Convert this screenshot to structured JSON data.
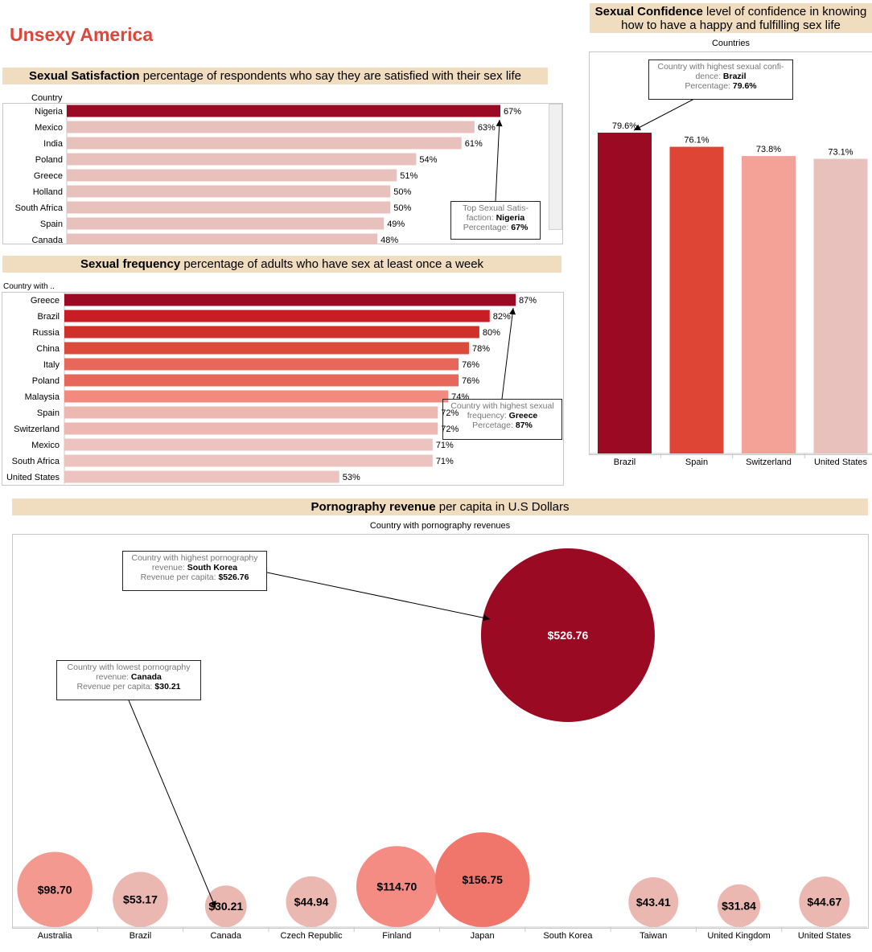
{
  "dashboard_title": "Unsexy America",
  "satisfaction": {
    "title_bold": "Sexual Satisfaction",
    "title_rest": " percentage of respondents who say they are satisfied with their sex life",
    "column_header": "Country",
    "annotation": {
      "line1": "Top Sexual Satis-",
      "line2_label": "faction:",
      "line2_value": "Nigeria",
      "line3_label": "Percentage:",
      "line3_value": "67%"
    },
    "colors": {
      "top": "#9b0a23",
      "other": "#e8c1bc"
    }
  },
  "frequency": {
    "title_bold": "Sexual frequency",
    "title_rest": " percentage of adults who have sex at least once a week",
    "column_header": "Country with ..",
    "annotation": {
      "line1": "Country with highest sexual",
      "line2_label": "frequency:",
      "line2_value": "Greece",
      "line3_label": "Percetage:",
      "line3_value": "87%"
    },
    "colors": [
      "#9b0a23",
      "#c91d26",
      "#d0302a",
      "#dc4a3b",
      "#e7685a",
      "#e7685a",
      "#f38a7f",
      "#eeb8b2",
      "#eeb8b2",
      "#ecc3be",
      "#ecc3be",
      "#ecc3be"
    ]
  },
  "confidence": {
    "title_bold": "Sexual Confidence",
    "title_rest_line1": " level of confidence in knowing",
    "title_line2": "how to have a happy and fulfilling sex life",
    "column_header": "Countries",
    "annotation": {
      "line1": "Country with highest sexual confi-",
      "line2_label": "dence:",
      "line2_value": "Brazil",
      "line3_label": "Percentage:",
      "line3_value": "79.6%"
    },
    "colors": [
      "#9b0a23",
      "#de4534",
      "#f4a197",
      "#e8c1bc"
    ]
  },
  "porn": {
    "title_bold": "Pornography revenue",
    "title_rest": " per capita in U.S Dollars",
    "column_header": "Country with pornography revenues",
    "annotation_high": {
      "line1": "Country with highest pornography",
      "line2_label": "revenue:",
      "line2_value": "South Korea",
      "line3_label": "Revenue per capita:",
      "line3_value": "$526.76"
    },
    "annotation_low": {
      "line1": "Country with lowest pornography",
      "line2_label": "revenue:",
      "line2_value": "Canada",
      "line3_label": "Revenue per capita:",
      "line3_value": "$30.21"
    },
    "colors": {
      "top": "#9b0a23",
      "second": "#f0756a",
      "third": "#f48c84",
      "fourth": "#f39990",
      "other": "#ebb7b1"
    }
  },
  "chart_data": [
    {
      "type": "bar",
      "title": "Sexual Satisfaction percentage of respondents who say they are satisfied with their sex life",
      "orientation": "horizontal",
      "categories": [
        "Nigeria",
        "Mexico",
        "India",
        "Poland",
        "Greece",
        "Holland",
        "South Africa",
        "Spain",
        "Canada"
      ],
      "values": [
        67,
        63,
        61,
        54,
        51,
        50,
        50,
        49,
        48
      ],
      "unit": "%"
    },
    {
      "type": "bar",
      "title": "Sexual frequency percentage of adults who have sex at least once a week",
      "orientation": "horizontal",
      "categories": [
        "Greece",
        "Brazil",
        "Russia",
        "China",
        "Italy",
        "Poland",
        "Malaysia",
        "Spain",
        "Switzerland",
        "Mexico",
        "South Africa",
        "United States"
      ],
      "values": [
        87,
        82,
        80,
        78,
        76,
        76,
        74,
        72,
        72,
        71,
        71,
        53
      ],
      "unit": "%"
    },
    {
      "type": "bar",
      "title": "Sexual Confidence level of confidence in knowing how to have a happy and fulfilling sex life",
      "orientation": "vertical",
      "categories": [
        "Brazil",
        "Spain",
        "Switzerland",
        "United States"
      ],
      "values": [
        79.6,
        76.1,
        73.8,
        73.1
      ],
      "unit": "%"
    },
    {
      "type": "scatter",
      "title": "Pornography revenue per capita in U.S Dollars",
      "encoding": "bubble",
      "categories": [
        "Australia",
        "Brazil",
        "Canada",
        "Czech Republic",
        "Finland",
        "Japan",
        "South Korea",
        "Taiwan",
        "United Kingdom",
        "United States"
      ],
      "values": [
        98.7,
        53.17,
        30.21,
        44.94,
        114.7,
        156.75,
        526.76,
        43.41,
        31.84,
        44.67
      ],
      "unit": "$"
    }
  ]
}
